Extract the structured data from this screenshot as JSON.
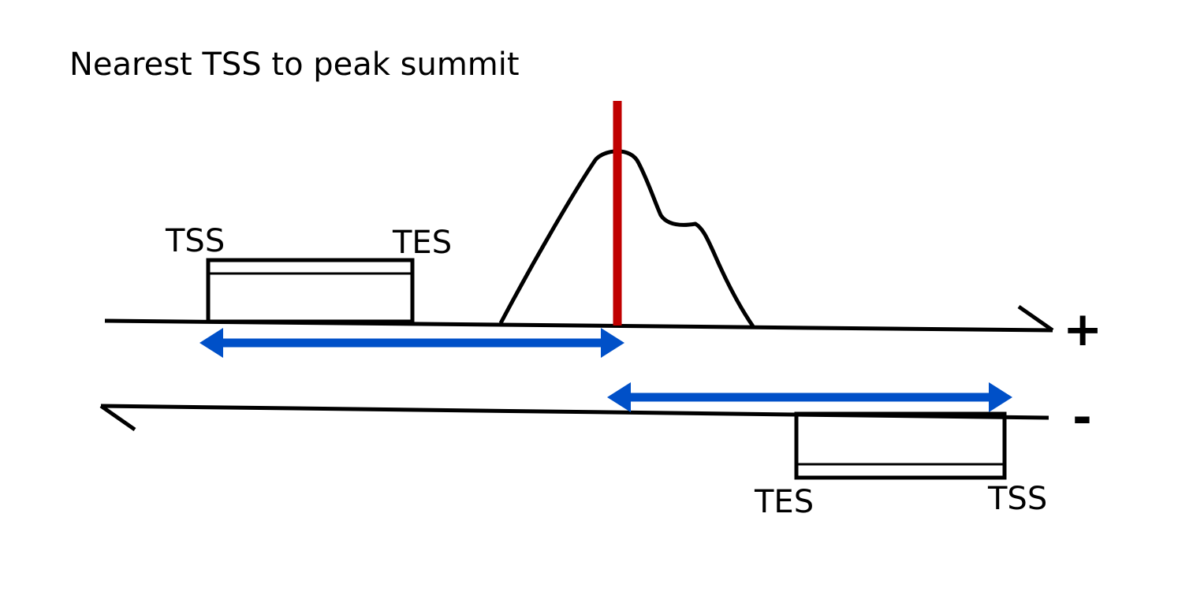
{
  "title": "Nearest TSS to peak summit",
  "plus_strand": {
    "symbol": "+",
    "gene": {
      "start_label": "TSS",
      "end_label": "TES"
    }
  },
  "minus_strand": {
    "symbol": "-",
    "gene": {
      "start_label": "TSS",
      "end_label": "TES"
    }
  },
  "colors": {
    "summit_line": "#c00000",
    "distance_arrow": "#0050c8",
    "outline": "#000000"
  }
}
